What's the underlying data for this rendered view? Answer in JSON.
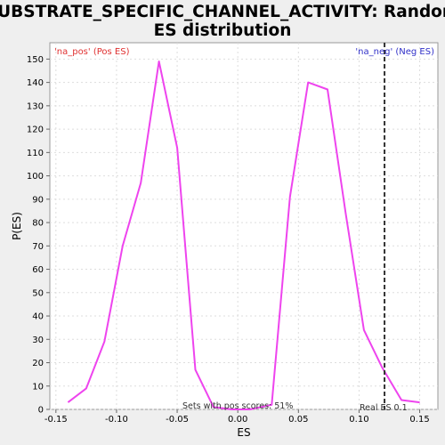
{
  "chart_data": {
    "type": "line",
    "title_line1": "SUBSTRATE_SPECIFIC_CHANNEL_ACTIVITY: Random",
    "title_line2": "ES distribution",
    "xlabel": "ES",
    "ylabel": "P(ES)",
    "xlim": [
      -0.155,
      0.165
    ],
    "ylim": [
      0,
      157
    ],
    "x_ticks": [
      -0.15,
      -0.1,
      -0.05,
      0.0,
      0.05,
      0.1,
      0.15
    ],
    "x_tick_labels": [
      "-0.15",
      "-0.10",
      "-0.05",
      "0.00",
      "0.05",
      "0.10",
      "0.15"
    ],
    "y_ticks": [
      0,
      10,
      20,
      30,
      40,
      50,
      60,
      70,
      80,
      90,
      100,
      110,
      120,
      130,
      140,
      150
    ],
    "y_tick_labels": [
      "0",
      "10",
      "20",
      "30",
      "40",
      "50",
      "60",
      "70",
      "80",
      "90",
      "100",
      "110",
      "120",
      "130",
      "140",
      "150"
    ],
    "grid": true,
    "series": [
      {
        "color": "#ee44ee",
        "x": [
          -0.14,
          -0.125,
          -0.11,
          -0.095,
          -0.08,
          -0.065,
          -0.05,
          -0.035,
          -0.02,
          -0.005,
          0.01,
          0.028,
          0.043,
          0.058,
          0.074,
          0.089,
          0.104,
          0.119,
          0.135,
          0.15
        ],
        "y": [
          3,
          9,
          29,
          70,
          97,
          149,
          112,
          17,
          1,
          0,
          0,
          2,
          91,
          140,
          137,
          84,
          34,
          18,
          4,
          3
        ]
      }
    ],
    "vline": {
      "x": 0.121,
      "color": "#333333",
      "style": "dashed"
    },
    "annotations": {
      "pos_label": "'na_pos' (Pos ES)",
      "neg_label": "'na_neg' (Neg ES)",
      "pos_scores": "Sets with pos scores: 51%",
      "real_es": "Real ES 0.1"
    },
    "colors": {
      "pos": "#e03030",
      "neg": "#3030c8",
      "line": "#ee44ee",
      "background": "#efefef",
      "plot": "#ffffff"
    }
  }
}
